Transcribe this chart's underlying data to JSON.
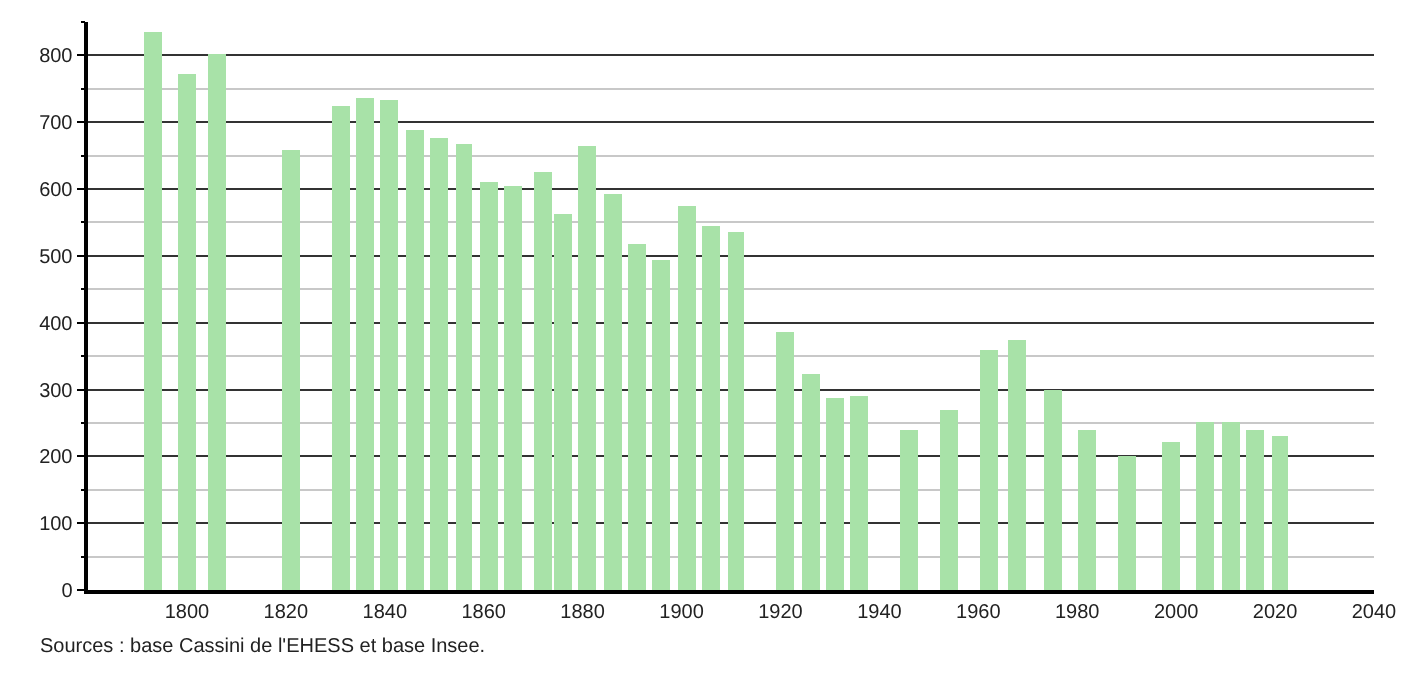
{
  "chart_data": {
    "type": "bar",
    "x": [
      1793,
      1800,
      1806,
      1821,
      1831,
      1836,
      1841,
      1846,
      1851,
      1856,
      1861,
      1866,
      1872,
      1876,
      1881,
      1886,
      1891,
      1896,
      1901,
      1906,
      1911,
      1921,
      1926,
      1931,
      1936,
      1946,
      1954,
      1962,
      1968,
      1975,
      1982,
      1990,
      1999,
      2006,
      2011,
      2016,
      2021
    ],
    "values": [
      835,
      772,
      803,
      658,
      725,
      737,
      734,
      687,
      675,
      666,
      610,
      605,
      625,
      563,
      663,
      593,
      517,
      493,
      575,
      545,
      535,
      385,
      324,
      286,
      289,
      238,
      270,
      360,
      373,
      300,
      238,
      200,
      222,
      250,
      250,
      240,
      230
    ],
    "color": "#a8e2a8",
    "xlim": [
      1780,
      2040
    ],
    "xticks": [
      1800,
      1820,
      1840,
      1860,
      1880,
      1900,
      1920,
      1940,
      1960,
      1980,
      2000,
      2020,
      2040
    ],
    "ylim": [
      0,
      850
    ],
    "yticks": [
      0,
      100,
      200,
      300,
      400,
      500,
      600,
      700,
      800
    ],
    "grid": "y",
    "annotations": [
      "Sources : base Cassini de l'EHESS et base Insee."
    ]
  }
}
